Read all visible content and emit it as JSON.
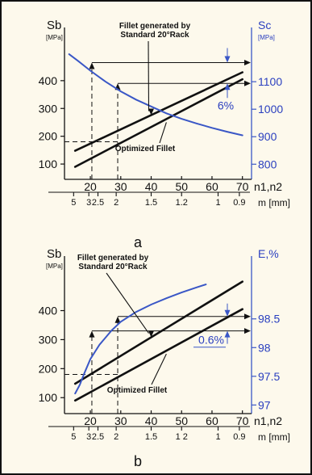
{
  "chart_data": [
    {
      "type": "line",
      "panel_label": "a",
      "y_left": {
        "label": "Sb",
        "unit": "[MPa]",
        "ticks": [
          "100",
          "200",
          "300",
          "400"
        ],
        "range": [
          45,
          510
        ]
      },
      "y_right": {
        "label": "Sc",
        "unit": "[MPa]",
        "ticks": [
          "800",
          "900",
          "1000",
          "1100"
        ],
        "range": [
          745,
          1215
        ]
      },
      "x_top": {
        "label": "n1,n2",
        "ticks": [
          "20",
          "30",
          "40",
          "50",
          "60",
          "70"
        ],
        "range": [
          11.5,
          73
        ]
      },
      "x_bottom": {
        "label": "m [mm]",
        "ticks": [
          "5",
          "3",
          "2.5",
          "2",
          "1.5",
          "1.2",
          "1",
          "0.9"
        ]
      },
      "series": [
        {
          "name": "Fillet generated by Standard 20°Rack",
          "axis": "left",
          "color": "#111111",
          "x": [
            15,
            70
          ],
          "y": [
            148,
            430
          ]
        },
        {
          "name": "Optimized Fillet",
          "axis": "left",
          "color": "#111111",
          "x": [
            15,
            70
          ],
          "y": [
            90,
            405
          ]
        },
        {
          "name": "",
          "axis": "right",
          "color": "#3a57c6",
          "x": [
            13,
            16,
            20,
            25,
            30,
            35,
            40,
            45,
            50,
            55,
            60,
            65,
            70
          ],
          "y": [
            1200,
            1175,
            1140,
            1100,
            1065,
            1035,
            1010,
            985,
            965,
            948,
            932,
            918,
            905
          ]
        }
      ],
      "annotations": [
        {
          "text": "6%"
        }
      ],
      "reference_lines": {
        "dashed_left_y": 180,
        "dashed_x": [
          20.5,
          29
        ],
        "arrow_levels_left": [
          465,
          390
        ]
      }
    },
    {
      "type": "line",
      "panel_label": "b",
      "y_left": {
        "label": "Sb",
        "unit": "[MPa]",
        "ticks": [
          "100",
          "200",
          "300",
          "400"
        ],
        "range": [
          45,
          510
        ]
      },
      "y_right": {
        "label": "E,%",
        "unit": "",
        "ticks": [
          "97",
          "97.5",
          "98",
          "98.5"
        ],
        "range": [
          96.85,
          99.2
        ]
      },
      "x_top": {
        "label": "n1,n2",
        "ticks": [
          "20",
          "30",
          "40",
          "50",
          "60",
          "70"
        ],
        "range": [
          11.5,
          73
        ]
      },
      "x_bottom": {
        "label": "m [mm]",
        "ticks": [
          "5",
          "3",
          "2.5",
          "2",
          "1.5",
          "1 2",
          "1",
          "0.9"
        ]
      },
      "series": [
        {
          "name": "Fillet generated by Standard 20°Rack",
          "axis": "left",
          "color": "#111111",
          "x": [
            15,
            70
          ],
          "y": [
            148,
            500
          ]
        },
        {
          "name": "Optimized Fillet",
          "axis": "left",
          "color": "#111111",
          "x": [
            15,
            70
          ],
          "y": [
            90,
            405
          ]
        },
        {
          "name": "",
          "axis": "right",
          "color": "#3a57c6",
          "x": [
            15,
            16.5,
            18,
            20,
            23,
            27,
            30,
            35,
            40,
            45,
            50,
            55,
            58
          ],
          "y": [
            97.2,
            97.35,
            97.55,
            97.8,
            98.05,
            98.3,
            98.45,
            98.62,
            98.75,
            98.86,
            98.96,
            99.05,
            99.1
          ]
        }
      ],
      "annotations": [
        {
          "text": "0.6%"
        }
      ],
      "reference_lines": {
        "dashed_left_y": 180,
        "dashed_x": [
          20.5,
          29
        ],
        "arrow_levels_left": [
          330,
          380
        ]
      }
    }
  ]
}
